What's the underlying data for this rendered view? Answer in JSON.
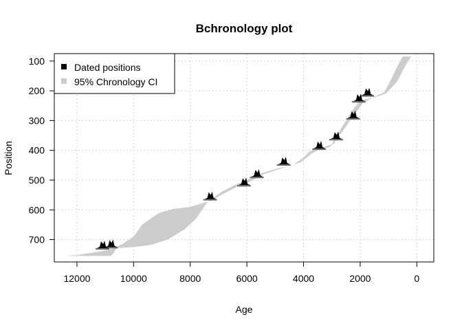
{
  "chart_data": {
    "type": "area",
    "title": "Bchronology plot",
    "xlabel": "Age",
    "ylabel": "Position",
    "xlim": [
      12800,
      -600
    ],
    "ylim": [
      775,
      75
    ],
    "x_ticks": [
      12000,
      10000,
      8000,
      6000,
      4000,
      2000,
      0
    ],
    "y_ticks": [
      100,
      200,
      300,
      400,
      500,
      600,
      700
    ],
    "x_ticklabels": [
      "12000",
      "10000",
      "8000",
      "6000",
      "4000",
      "2000",
      "0"
    ],
    "y_ticklabels": [
      "100",
      "200",
      "300",
      "400",
      "500",
      "600",
      "700"
    ],
    "grid": true,
    "legend": {
      "placement": "top-left",
      "entries": [
        {
          "label": "Dated positions",
          "color": "#000000"
        },
        {
          "label": "95% Chronology CI",
          "color": "#cccccc"
        }
      ]
    },
    "series": [
      {
        "name": "95% Chronology CI",
        "color": "#cccccc",
        "old_bound": [
          [
            -600,
            85
          ],
          [
            500,
            85
          ],
          [
            700,
            120
          ],
          [
            900,
            160
          ],
          [
            1150,
            205
          ],
          [
            1500,
            220
          ],
          [
            1700,
            230
          ],
          [
            1900,
            240
          ],
          [
            2050,
            260
          ],
          [
            2250,
            285
          ],
          [
            2500,
            320
          ],
          [
            2700,
            345
          ],
          [
            2850,
            360
          ],
          [
            2900,
            375
          ],
          [
            3100,
            390
          ],
          [
            3400,
            395
          ],
          [
            3700,
            410
          ],
          [
            4100,
            440
          ],
          [
            4700,
            458
          ],
          [
            5400,
            480
          ],
          [
            5900,
            505
          ],
          [
            6300,
            520
          ],
          [
            6800,
            545
          ],
          [
            7300,
            570
          ],
          [
            8000,
            590
          ],
          [
            8600,
            597
          ],
          [
            9100,
            610
          ],
          [
            9700,
            650
          ],
          [
            10000,
            690
          ],
          [
            10400,
            715
          ],
          [
            10700,
            730
          ],
          [
            11200,
            740
          ],
          [
            12000,
            752
          ],
          [
            12400,
            755
          ]
        ],
        "young_bound": [
          [
            -600,
            85
          ],
          [
            200,
            85
          ],
          [
            400,
            115
          ],
          [
            700,
            170
          ],
          [
            1100,
            210
          ],
          [
            1500,
            222
          ],
          [
            1800,
            228
          ],
          [
            2000,
            236
          ],
          [
            2150,
            250
          ],
          [
            2300,
            270
          ],
          [
            2500,
            300
          ],
          [
            2700,
            330
          ],
          [
            2800,
            350
          ],
          [
            2900,
            362
          ],
          [
            3000,
            380
          ],
          [
            3300,
            390
          ],
          [
            3600,
            398
          ],
          [
            3800,
            405
          ],
          [
            4000,
            425
          ],
          [
            4400,
            450
          ],
          [
            4900,
            460
          ],
          [
            5500,
            478
          ],
          [
            6000,
            500
          ],
          [
            6400,
            515
          ],
          [
            6900,
            540
          ],
          [
            7200,
            560
          ],
          [
            7400,
            575
          ],
          [
            7800,
            630
          ],
          [
            8200,
            665
          ],
          [
            8800,
            700
          ],
          [
            9400,
            718
          ],
          [
            10000,
            725
          ],
          [
            10600,
            728
          ],
          [
            10700,
            745
          ],
          [
            10800,
            755
          ],
          [
            12400,
            755
          ]
        ]
      },
      {
        "name": "Dated positions",
        "color": "#000000",
        "points": [
          {
            "age": 1750,
            "position": 208
          },
          {
            "age": 2050,
            "position": 228
          },
          {
            "age": 2250,
            "position": 285
          },
          {
            "age": 2850,
            "position": 355
          },
          {
            "age": 3450,
            "position": 387
          },
          {
            "age": 4700,
            "position": 440
          },
          {
            "age": 5650,
            "position": 482
          },
          {
            "age": 6100,
            "position": 510
          },
          {
            "age": 7300,
            "position": 557
          },
          {
            "age": 10800,
            "position": 718
          },
          {
            "age": 11100,
            "position": 722
          }
        ]
      }
    ]
  }
}
